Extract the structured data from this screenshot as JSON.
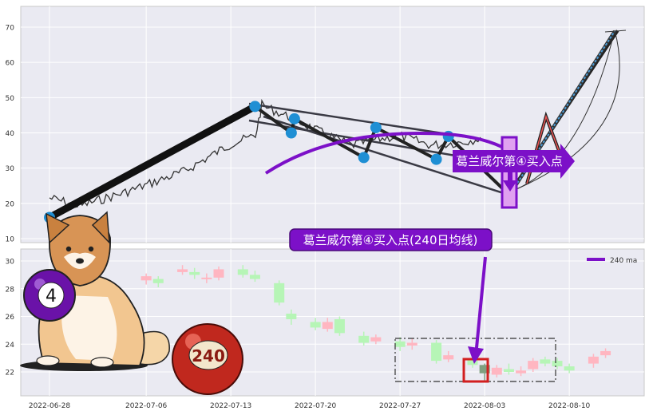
{
  "colors": {
    "background": "#eaeaf2",
    "grid": "#ffffff",
    "price_line": "#333333",
    "trend_line": "#222222",
    "marker": "#1f8fd4",
    "ma_line": "#7c10c8",
    "callout_bg": "#7c10c8",
    "candle_up": "#ffb6c1",
    "candle_down": "#b6f5b6",
    "candle_highlight": "#7f9f7f",
    "highlight_box": "#d21f1f",
    "target_line": "#4a9bd6"
  },
  "annotations": {
    "top_callout": "葛兰威尔第④买入点",
    "bottom_callout": "葛兰威尔第④买入点(240日均线)",
    "ball_8_label": "4",
    "ball_red_label": "240"
  },
  "chart_data": [
    {
      "type": "line",
      "panel": "price",
      "ylim": [
        9,
        76
      ],
      "yticks": [
        10,
        20,
        30,
        40,
        50,
        60,
        70
      ],
      "grid": true,
      "zigzag_points": [
        {
          "x": "2022-06-28",
          "y": 16
        },
        {
          "x": "2022-07-15",
          "y": 47.5
        },
        {
          "x": "2022-07-18",
          "y": 40
        },
        {
          "x": "2022-07-18",
          "y": 44
        },
        {
          "x": "2022-07-24",
          "y": 33
        },
        {
          "x": "2022-07-25",
          "y": 41.5
        },
        {
          "x": "2022-07-30",
          "y": 32.5
        },
        {
          "x": "2022-07-31",
          "y": 39
        },
        {
          "x": "2022-08-05",
          "y": 22.5
        },
        {
          "x": "2022-08-14",
          "y": 69
        }
      ]
    },
    {
      "type": "bar",
      "panel": "candles",
      "ylim": [
        20.5,
        31
      ],
      "yticks": [
        22,
        24,
        26,
        28,
        30
      ],
      "grid": true,
      "legend": {
        "position": "top-right",
        "entries": [
          "240 ma"
        ]
      },
      "xticks": [
        "2022-06-28",
        "2022-07-06",
        "2022-07-13",
        "2022-07-20",
        "2022-07-27",
        "2022-08-03",
        "2022-08-10"
      ],
      "candles": [
        {
          "x": "2022-07-06",
          "open": 28.6,
          "close": 28.9,
          "high": 29.1,
          "low": 28.3
        },
        {
          "x": "2022-07-07",
          "open": 28.7,
          "close": 28.4,
          "high": 28.9,
          "low": 28.1
        },
        {
          "x": "2022-07-09",
          "open": 29.2,
          "close": 29.4,
          "high": 29.7,
          "low": 29.0
        },
        {
          "x": "2022-07-10",
          "open": 29.2,
          "close": 29.0,
          "high": 29.5,
          "low": 28.7
        },
        {
          "x": "2022-07-11",
          "open": 28.7,
          "close": 28.8,
          "high": 29.1,
          "low": 28.4
        },
        {
          "x": "2022-07-12",
          "open": 28.8,
          "close": 29.4,
          "high": 29.6,
          "low": 28.6
        },
        {
          "x": "2022-07-14",
          "open": 29.4,
          "close": 29.0,
          "high": 29.7,
          "low": 28.8
        },
        {
          "x": "2022-07-15",
          "open": 29.0,
          "close": 28.7,
          "high": 29.3,
          "low": 28.5
        },
        {
          "x": "2022-07-17",
          "open": 28.4,
          "close": 27.0,
          "high": 28.6,
          "low": 26.8
        },
        {
          "x": "2022-07-18",
          "open": 26.2,
          "close": 25.8,
          "high": 26.5,
          "low": 25.4
        },
        {
          "x": "2022-07-20",
          "open": 25.6,
          "close": 25.2,
          "high": 25.9,
          "low": 25.0
        },
        {
          "x": "2022-07-21",
          "open": 25.1,
          "close": 25.6,
          "high": 25.9,
          "low": 24.9
        },
        {
          "x": "2022-07-22",
          "open": 25.8,
          "close": 24.8,
          "high": 26.0,
          "low": 24.6
        },
        {
          "x": "2022-07-24",
          "open": 24.6,
          "close": 24.1,
          "high": 24.9,
          "low": 23.9
        },
        {
          "x": "2022-07-25",
          "open": 24.2,
          "close": 24.5,
          "high": 24.7,
          "low": 24.0
        },
        {
          "x": "2022-07-27",
          "open": 24.2,
          "close": 23.8,
          "high": 24.5,
          "low": 23.5
        },
        {
          "x": "2022-07-28",
          "open": 23.9,
          "close": 24.1,
          "high": 24.4,
          "low": 23.6
        },
        {
          "x": "2022-07-30",
          "open": 24.1,
          "close": 22.8,
          "high": 24.3,
          "low": 22.6
        },
        {
          "x": "2022-07-31",
          "open": 22.9,
          "close": 23.2,
          "high": 23.5,
          "low": 22.7
        },
        {
          "x": "2022-08-02",
          "open": 22.9,
          "close": 22.5,
          "high": 23.2,
          "low": 22.3
        },
        {
          "x": "2022-08-03",
          "open": 22.5,
          "close": 21.9,
          "high": 22.6,
          "low": 21.4
        },
        {
          "x": "2022-08-04",
          "open": 21.8,
          "close": 22.3,
          "high": 22.5,
          "low": 21.6
        },
        {
          "x": "2022-08-05",
          "open": 22.2,
          "close": 22.0,
          "high": 22.6,
          "low": 21.8
        },
        {
          "x": "2022-08-06",
          "open": 21.9,
          "close": 22.1,
          "high": 22.4,
          "low": 21.7
        },
        {
          "x": "2022-08-07",
          "open": 22.2,
          "close": 22.8,
          "high": 23.0,
          "low": 22.0
        },
        {
          "x": "2022-08-08",
          "open": 22.9,
          "close": 22.6,
          "high": 23.1,
          "low": 22.4
        },
        {
          "x": "2022-08-09",
          "open": 22.8,
          "close": 22.4,
          "high": 23.0,
          "low": 22.2
        },
        {
          "x": "2022-08-10",
          "open": 22.4,
          "close": 22.1,
          "high": 22.6,
          "low": 21.9
        },
        {
          "x": "2022-08-12",
          "open": 22.6,
          "close": 23.1,
          "high": 23.3,
          "low": 22.3
        },
        {
          "x": "2022-08-13",
          "open": 23.2,
          "close": 23.5,
          "high": 23.7,
          "low": 23.0
        }
      ]
    }
  ]
}
